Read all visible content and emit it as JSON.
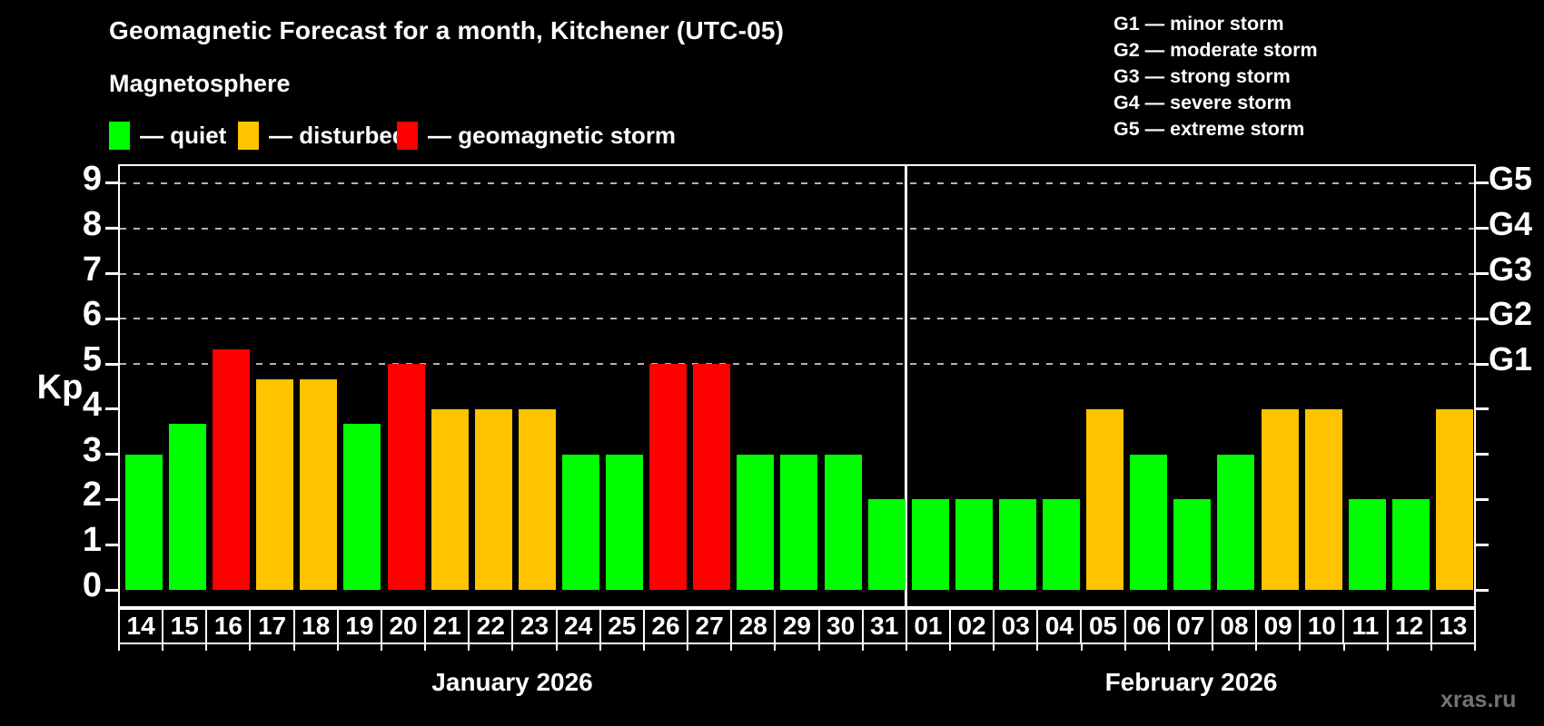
{
  "header": {
    "title": "Geomagnetic Forecast for a month, Kitchener (UTC-05)",
    "subtitle": "Magnetosphere",
    "legend": [
      {
        "state": "quiet",
        "label": "— quiet",
        "color": "#00ff00"
      },
      {
        "state": "disturbed",
        "label": "— disturbed",
        "color": "#ffc300"
      },
      {
        "state": "storm",
        "label": "— geomagnetic storm",
        "color": "#ff0000"
      }
    ],
    "g_scale_legend": [
      "G1 — minor storm",
      "G2 — moderate storm",
      "G3 — strong storm",
      "G4 — severe storm",
      "G5 — extreme storm"
    ]
  },
  "chart_data": {
    "type": "bar",
    "title": "Geomagnetic Forecast for a month, Kitchener (UTC-05)",
    "xlabel": "",
    "ylabel": "Kp",
    "ylim": [
      0,
      9.4
    ],
    "yticks": [
      0,
      1,
      2,
      3,
      4,
      5,
      6,
      7,
      8,
      9
    ],
    "grid": "horizontal dashed lines at Kp 5,6,7,8,9 only",
    "legend_position": "top-left",
    "right_axis_labels": [
      {
        "kp": 5,
        "label": "G1"
      },
      {
        "kp": 6,
        "label": "G2"
      },
      {
        "kp": 7,
        "label": "G3"
      },
      {
        "kp": 8,
        "label": "G4"
      },
      {
        "kp": 9,
        "label": "G5"
      }
    ],
    "months": [
      {
        "label": "January 2026",
        "days": 18
      },
      {
        "label": "February 2026",
        "days": 13
      }
    ],
    "categories": [
      "14",
      "15",
      "16",
      "17",
      "18",
      "19",
      "20",
      "21",
      "22",
      "23",
      "24",
      "25",
      "26",
      "27",
      "28",
      "29",
      "30",
      "31",
      "01",
      "02",
      "03",
      "04",
      "05",
      "06",
      "07",
      "08",
      "09",
      "10",
      "11",
      "12",
      "13"
    ],
    "values": [
      3,
      3.67,
      5.33,
      4.67,
      4.67,
      3.67,
      5,
      4,
      4,
      4,
      3,
      3,
      5,
      5,
      3,
      3,
      3,
      2,
      2,
      2,
      2,
      2,
      4,
      3,
      2,
      3,
      4,
      4,
      2,
      2,
      4
    ],
    "states": [
      "quiet",
      "quiet",
      "storm",
      "disturbed",
      "disturbed",
      "quiet",
      "storm",
      "disturbed",
      "disturbed",
      "disturbed",
      "quiet",
      "quiet",
      "storm",
      "storm",
      "quiet",
      "quiet",
      "quiet",
      "quiet",
      "quiet",
      "quiet",
      "quiet",
      "quiet",
      "disturbed",
      "quiet",
      "quiet",
      "quiet",
      "disturbed",
      "disturbed",
      "quiet",
      "quiet",
      "disturbed"
    ],
    "colors": {
      "quiet": "#00ff00",
      "disturbed": "#ffc300",
      "storm": "#ff0000"
    }
  },
  "footer": {
    "watermark": "xras.ru"
  }
}
